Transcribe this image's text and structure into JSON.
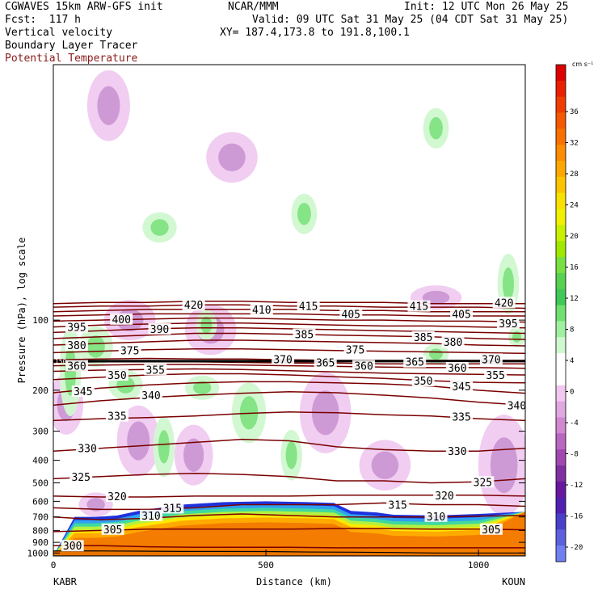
{
  "header": {
    "model": "CGWAVES 15km ARW-GFS init",
    "org": "NCAR/MMM",
    "init": "Init: 12 UTC Mon 26 May 25",
    "fcst": "Fcst:  117 h",
    "valid": "Valid: 09 UTC Sat 31 May 25 (04 CDT Sat 31 May 25)",
    "xy": "XY= 187.4,173.8 to 191.8,100.1",
    "field1": "Vertical velocity",
    "field2": "Boundary Layer Tracer",
    "field3": "Potential Temperature"
  },
  "colors": {
    "theta": "#7a0000",
    "field3_text": "#8b1a1a",
    "terrain": "#f47c00",
    "bl_tracer": [
      "#1e32dc",
      "#30a0f0",
      "#40d8a0",
      "#b4f040",
      "#ffe800",
      "#ffaa00"
    ]
  },
  "chart_data": {
    "type": "cross-section",
    "xlabel": "Distance (km)",
    "ylabel": "Pressure (hPa), log scale",
    "xlim": [
      0,
      1110
    ],
    "ylim": [
      1030,
      8
    ],
    "x_ticks": [
      0,
      500,
      1000
    ],
    "y_ticks": [
      100,
      200,
      300,
      400,
      500,
      600,
      700,
      800,
      900,
      1000
    ],
    "left_station": "KABR",
    "right_station": "KOUN",
    "tropopause_label": "150",
    "colorbar": {
      "units": "cm s⁻¹",
      "levels": [
        36,
        32,
        28,
        24,
        20,
        16,
        12,
        8,
        4,
        0,
        -4,
        -8,
        -12,
        -16,
        -20
      ],
      "colors": [
        "#dc0000",
        "#e82000",
        "#f03c00",
        "#f45800",
        "#f87000",
        "#fc8c00",
        "#fca800",
        "#fcc400",
        "#f8e000",
        "#f0f000",
        "#c8f000",
        "#a0e800",
        "#78e040",
        "#58d050",
        "#40c858",
        "#70e070",
        "#a0f0a0",
        "#d0f8d0",
        "#ffffff",
        "#ffffff",
        "#f0c8f0",
        "#e0a8e0",
        "#d088d0",
        "#b868c0",
        "#a048b0",
        "#8030a0",
        "#6818a0",
        "#5020b0",
        "#4840c8",
        "#5c60dc",
        "#7080f0"
      ]
    },
    "isentropes": [
      {
        "theta": 300,
        "y": [
          930,
          930,
          940,
          945,
          945,
          945,
          950,
          950,
          950,
          950,
          950
        ]
      },
      {
        "theta": 305,
        "y": [
          810,
          800,
          790,
          790,
          790,
          790,
          785,
          785,
          790,
          790,
          795
        ]
      },
      {
        "theta": 310,
        "y": [
          700,
          720,
          710,
          690,
          680,
          690,
          700,
          700,
          700,
          695,
          690
        ]
      },
      {
        "theta": 315,
        "y": [
          640,
          650,
          650,
          640,
          620,
          620,
          620,
          610,
          620,
          620,
          630
        ]
      },
      {
        "theta": 320,
        "y": [
          570,
          575,
          575,
          570,
          570,
          570,
          565,
          565,
          565,
          565,
          570
        ]
      },
      {
        "theta": 325,
        "y": [
          480,
          470,
          460,
          455,
          460,
          470,
          490,
          490,
          500,
          495,
          480
        ]
      },
      {
        "theta": 330,
        "y": [
          365,
          355,
          345,
          335,
          325,
          330,
          350,
          360,
          365,
          365,
          355
        ]
      },
      {
        "theta": 335,
        "y": [
          270,
          265,
          262,
          258,
          252,
          248,
          250,
          255,
          258,
          265,
          270
        ]
      },
      {
        "theta": 340,
        "y": [
          232,
          222,
          215,
          210,
          206,
          203,
          205,
          210,
          216,
          225,
          232
        ]
      },
      {
        "theta": 345,
        "y": [
          205,
          196,
          190,
          186,
          184,
          184,
          186,
          188,
          192,
          200,
          206
        ]
      },
      {
        "theta": 350,
        "y": [
          180,
          176,
          172,
          170,
          170,
          172,
          175,
          178,
          182,
          185,
          186
        ]
      },
      {
        "theta": 355,
        "y": [
          166,
          164,
          163,
          162,
          163,
          165,
          167,
          169,
          170,
          171,
          172
        ]
      },
      {
        "theta": 360,
        "y": [
          157,
          156,
          155,
          155,
          156,
          157,
          158,
          159,
          160,
          160,
          161
        ]
      },
      {
        "theta": 365,
        "y": [
          152,
          151,
          151,
          151,
          152,
          153,
          153,
          154,
          154,
          154,
          154
        ]
      },
      {
        "theta": 370,
        "y": [
          148,
          147,
          146,
          147,
          147,
          148,
          149,
          149,
          149,
          149,
          149
        ]
      },
      {
        "theta": 375,
        "y": [
          138,
          136,
          134,
          133,
          133,
          134,
          135,
          136,
          137,
          138,
          139
        ]
      },
      {
        "theta": 380,
        "y": [
          128,
          126,
          124,
          122,
          122,
          123,
          124,
          125,
          126,
          128,
          129
        ]
      },
      {
        "theta": 385,
        "y": [
          120,
          118,
          116,
          114,
          114,
          115,
          116,
          117,
          118,
          120,
          121
        ]
      },
      {
        "theta": 390,
        "y": [
          113,
          111,
          109,
          108,
          108,
          109,
          110,
          111,
          112,
          113,
          114
        ]
      },
      {
        "theta": 395,
        "y": [
          107,
          105,
          104,
          103,
          103,
          104,
          105,
          106,
          106,
          107,
          108
        ]
      },
      {
        "theta": 400,
        "y": [
          101,
          100,
          99,
          98,
          98,
          99,
          100,
          100,
          101,
          101,
          102
        ]
      },
      {
        "theta": 405,
        "y": [
          96,
          95,
          94,
          94,
          94,
          94,
          95,
          95,
          96,
          96,
          96
        ]
      },
      {
        "theta": 410,
        "y": [
          92,
          91,
          90,
          90,
          90,
          90,
          91,
          91,
          92,
          92,
          92
        ]
      },
      {
        "theta": 415,
        "y": [
          88,
          87,
          87,
          86,
          86,
          87,
          87,
          88,
          88,
          88,
          89
        ]
      },
      {
        "theta": 420,
        "y": [
          85,
          84,
          84,
          83,
          83,
          84,
          84,
          84,
          85,
          85,
          85
        ]
      }
    ],
    "contour_labels": [
      {
        "text": "420",
        "x": 330,
        "p": 86
      },
      {
        "text": "410",
        "x": 490,
        "p": 90
      },
      {
        "text": "415",
        "x": 600,
        "p": 87
      },
      {
        "text": "405",
        "x": 700,
        "p": 94
      },
      {
        "text": "415",
        "x": 860,
        "p": 87
      },
      {
        "text": "405",
        "x": 960,
        "p": 94
      },
      {
        "text": "420",
        "x": 1060,
        "p": 84
      },
      {
        "text": "395",
        "x": 1070,
        "p": 103
      },
      {
        "text": "400",
        "x": 160,
        "p": 99
      },
      {
        "text": "395",
        "x": 55,
        "p": 107
      },
      {
        "text": "390",
        "x": 250,
        "p": 109
      },
      {
        "text": "385",
        "x": 590,
        "p": 115
      },
      {
        "text": "385",
        "x": 870,
        "p": 118
      },
      {
        "text": "380",
        "x": 940,
        "p": 124
      },
      {
        "text": "375",
        "x": 710,
        "p": 134
      },
      {
        "text": "380",
        "x": 55,
        "p": 128
      },
      {
        "text": "375",
        "x": 180,
        "p": 135
      },
      {
        "text": "370",
        "x": 1030,
        "p": 147
      },
      {
        "text": "370",
        "x": 540,
        "p": 147
      },
      {
        "text": "365",
        "x": 640,
        "p": 152
      },
      {
        "text": "365",
        "x": 850,
        "p": 151
      },
      {
        "text": "360",
        "x": 730,
        "p": 157
      },
      {
        "text": "360",
        "x": 950,
        "p": 160
      },
      {
        "text": "360",
        "x": 55,
        "p": 157
      },
      {
        "text": "355",
        "x": 1040,
        "p": 172
      },
      {
        "text": "355",
        "x": 240,
        "p": 163
      },
      {
        "text": "350",
        "x": 150,
        "p": 172
      },
      {
        "text": "350",
        "x": 870,
        "p": 182
      },
      {
        "text": "345",
        "x": 960,
        "p": 192
      },
      {
        "text": "345",
        "x": 70,
        "p": 202
      },
      {
        "text": "340",
        "x": 230,
        "p": 210
      },
      {
        "text": "340",
        "x": 1090,
        "p": 232
      },
      {
        "text": "335",
        "x": 150,
        "p": 258
      },
      {
        "text": "335",
        "x": 960,
        "p": 260
      },
      {
        "text": "330",
        "x": 80,
        "p": 355
      },
      {
        "text": "330",
        "x": 950,
        "p": 365
      },
      {
        "text": "325",
        "x": 65,
        "p": 470
      },
      {
        "text": "325",
        "x": 1010,
        "p": 495
      },
      {
        "text": "320",
        "x": 150,
        "p": 570
      },
      {
        "text": "320",
        "x": 920,
        "p": 565
      },
      {
        "text": "315",
        "x": 280,
        "p": 640
      },
      {
        "text": "315",
        "x": 810,
        "p": 620
      },
      {
        "text": "310",
        "x": 230,
        "p": 690
      },
      {
        "text": "310",
        "x": 900,
        "p": 695
      },
      {
        "text": "305",
        "x": 140,
        "p": 790
      },
      {
        "text": "305",
        "x": 1030,
        "p": 790
      },
      {
        "text": "300",
        "x": 45,
        "p": 930
      }
    ],
    "terrain_surface": {
      "x": [
        0,
        100,
        200,
        300,
        400,
        500,
        600,
        700,
        800,
        900,
        1000,
        1110
      ],
      "p": [
        980,
        980,
        982,
        985,
        985,
        986,
        990,
        992,
        995,
        1000,
        1000,
        1000
      ]
    },
    "terrain_blob": {
      "x": [
        0,
        50,
        100,
        150,
        200,
        300,
        400,
        500,
        600,
        660,
        700,
        760,
        800,
        900,
        1000,
        1110
      ],
      "p": [
        1030,
        700,
        700,
        690,
        660,
        620,
        605,
        600,
        605,
        610,
        660,
        670,
        685,
        690,
        680,
        665
      ]
    },
    "w_positive": [
      {
        "x": 250,
        "p": 40,
        "rx": 40,
        "rp": 0.15
      },
      {
        "x": 40,
        "p": 165,
        "rx": 25,
        "rp": 0.45
      },
      {
        "x": 100,
        "p": 130,
        "rx": 40,
        "rp": 0.2
      },
      {
        "x": 170,
        "p": 190,
        "rx": 40,
        "rp": 0.15
      },
      {
        "x": 350,
        "p": 195,
        "rx": 40,
        "rp": 0.12
      },
      {
        "x": 460,
        "p": 250,
        "rx": 40,
        "rp": 0.3
      },
      {
        "x": 560,
        "p": 380,
        "rx": 25,
        "rp": 0.25
      },
      {
        "x": 900,
        "p": 140,
        "rx": 30,
        "rp": 0.1
      },
      {
        "x": 1070,
        "p": 70,
        "rx": 25,
        "rp": 0.3
      },
      {
        "x": 1090,
        "p": 118,
        "rx": 20,
        "rp": 0.1
      },
      {
        "x": 260,
        "p": 350,
        "rx": 25,
        "rp": 0.3
      },
      {
        "x": 900,
        "p": 15,
        "rx": 30,
        "rp": 0.2
      },
      {
        "x": 590,
        "p": 35,
        "rx": 30,
        "rp": 0.2
      },
      {
        "x": 360,
        "p": 105,
        "rx": 25,
        "rp": 0.15
      }
    ],
    "w_negative": [
      {
        "x": 130,
        "p": 12,
        "rx": 50,
        "rp": 0.35
      },
      {
        "x": 370,
        "p": 110,
        "rx": 60,
        "rp": 0.25
      },
      {
        "x": 180,
        "p": 100,
        "rx": 60,
        "rp": 0.2
      },
      {
        "x": 640,
        "p": 250,
        "rx": 60,
        "rp": 0.4
      },
      {
        "x": 330,
        "p": 380,
        "rx": 45,
        "rp": 0.3
      },
      {
        "x": 30,
        "p": 230,
        "rx": 40,
        "rp": 0.3
      },
      {
        "x": 200,
        "p": 330,
        "rx": 50,
        "rp": 0.35
      },
      {
        "x": 1060,
        "p": 420,
        "rx": 60,
        "rp": 0.5
      },
      {
        "x": 900,
        "p": 80,
        "rx": 60,
        "rp": 0.12
      },
      {
        "x": 420,
        "p": 20,
        "rx": 60,
        "rp": 0.25
      },
      {
        "x": 780,
        "p": 420,
        "rx": 60,
        "rp": 0.25
      },
      {
        "x": 100,
        "p": 620,
        "rx": 40,
        "rp": 0.12
      }
    ]
  }
}
